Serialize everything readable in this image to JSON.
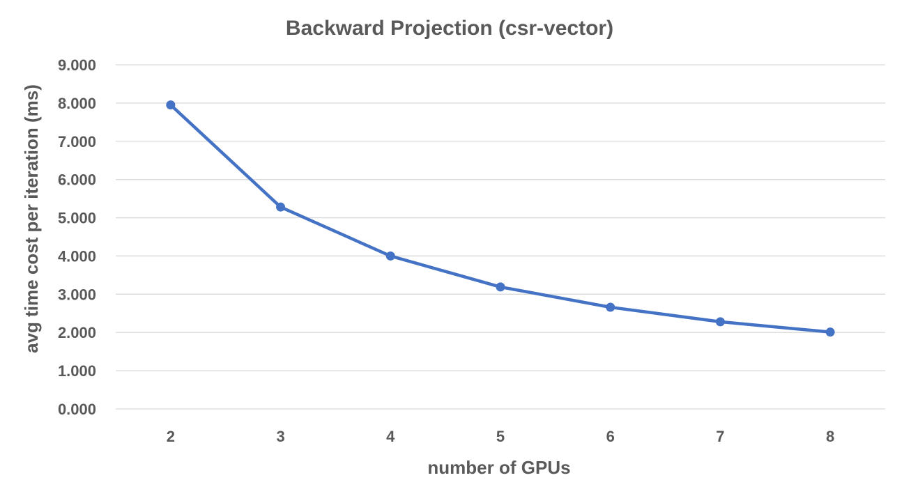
{
  "chart_data": {
    "type": "line",
    "title": "Backward Projection (csr-vector)",
    "xlabel": "number of GPUs",
    "ylabel": "avg time cost per iteration (ms)",
    "categories": [
      "2",
      "3",
      "4",
      "5",
      "6",
      "7",
      "8"
    ],
    "series": [
      {
        "values": [
          7.95,
          5.28,
          4.0,
          3.19,
          2.66,
          2.28,
          2.01
        ]
      }
    ],
    "ylim": [
      0,
      9
    ],
    "yticks": [
      "0.000",
      "1.000",
      "2.000",
      "3.000",
      "4.000",
      "5.000",
      "6.000",
      "7.000",
      "8.000",
      "9.000"
    ],
    "grid": true,
    "legend": "none",
    "colors": {
      "series": "#4472c4",
      "gridline": "#d9d9d9",
      "text": "#595959"
    }
  }
}
